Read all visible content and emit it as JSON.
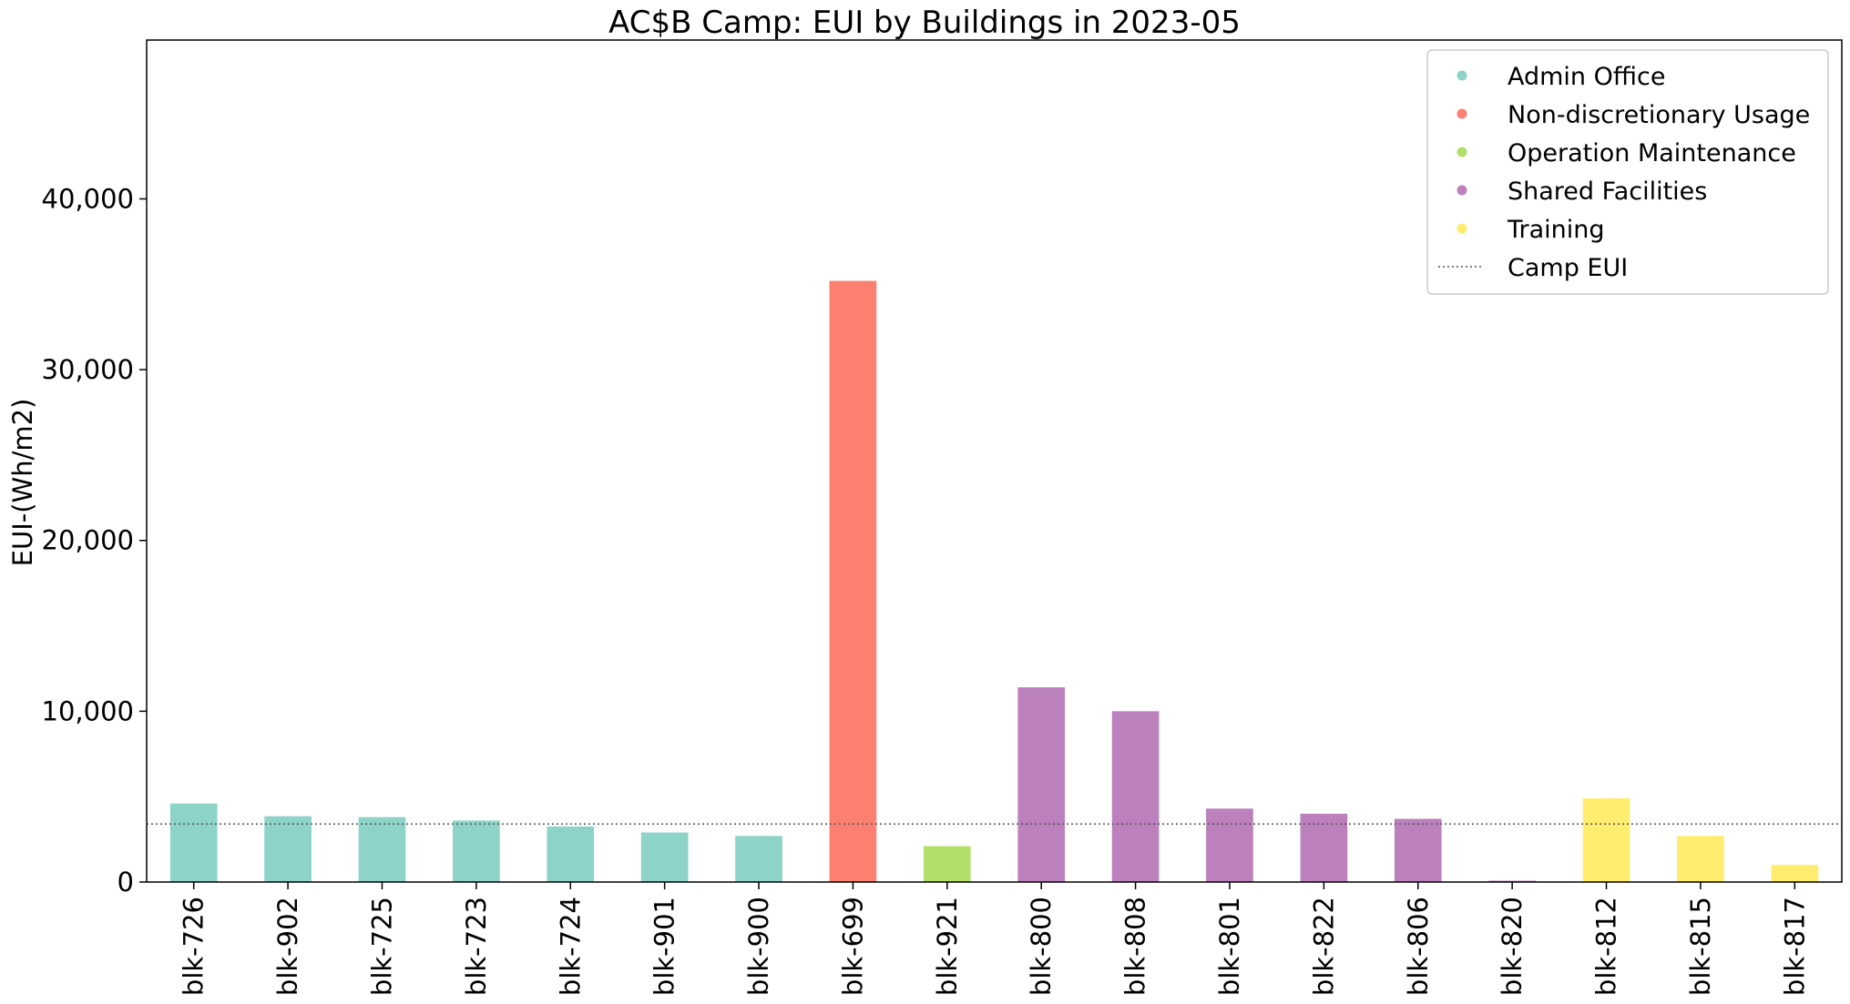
{
  "chart_data": {
    "type": "bar",
    "title": "AC$B Camp: EUI by Buildings in 2023-05",
    "xlabel": "",
    "ylabel": "EUI-(Wh/m2)",
    "ylim": [
      0,
      49300
    ],
    "yticks": [
      {
        "value": 0,
        "label": "0"
      },
      {
        "value": 10000,
        "label": "10,000"
      },
      {
        "value": 20000,
        "label": "20,000"
      },
      {
        "value": 30000,
        "label": "30,000"
      },
      {
        "value": 40000,
        "label": "40,000"
      }
    ],
    "grid": false,
    "legend_position": "top-right",
    "categories": [
      "blk-726",
      "blk-902",
      "blk-725",
      "blk-723",
      "blk-724",
      "blk-901",
      "blk-900",
      "blk-699",
      "blk-921",
      "blk-800",
      "blk-808",
      "blk-801",
      "blk-822",
      "blk-806",
      "blk-820",
      "blk-812",
      "blk-815",
      "blk-817"
    ],
    "values": [
      4600,
      3850,
      3800,
      3600,
      3250,
      2900,
      2700,
      35200,
      2100,
      11400,
      10000,
      4300,
      4000,
      3700,
      80,
      4900,
      2700,
      1000
    ],
    "groups": [
      "Admin Office",
      "Admin Office",
      "Admin Office",
      "Admin Office",
      "Admin Office",
      "Admin Office",
      "Admin Office",
      "Non-discretionary Usage",
      "Operation Maintenance",
      "Shared Facilities",
      "Shared Facilities",
      "Shared Facilities",
      "Shared Facilities",
      "Shared Facilities",
      "Shared Facilities",
      "Training",
      "Training",
      "Training"
    ],
    "legend": [
      {
        "name": "Admin Office",
        "color": "#8dd3c7"
      },
      {
        "name": "Non-discretionary Usage",
        "color": "#fb8072"
      },
      {
        "name": "Operation Maintenance",
        "color": "#b3de69"
      },
      {
        "name": "Shared Facilities",
        "color": "#bc80bd"
      },
      {
        "name": "Training",
        "color": "#ffed6f"
      }
    ],
    "reference_line": {
      "name": "Camp EUI",
      "value": 3400,
      "style": "dotted",
      "color": "#555555"
    }
  }
}
